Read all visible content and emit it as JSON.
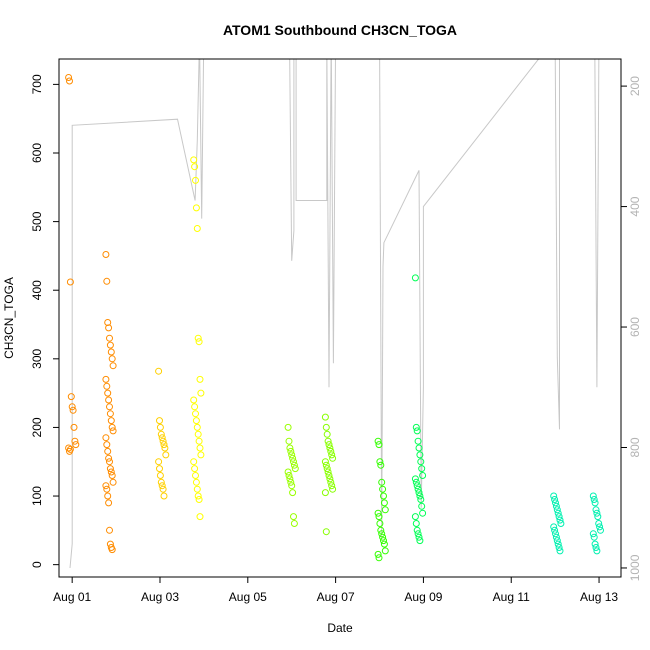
{
  "chart_data": {
    "type": "scatter",
    "title": "ATOM1 Southbound CH3CN_TOGA",
    "xlabel": "Date",
    "ylabel": "CH3CN_TOGA",
    "x_ticks": [
      "Aug 01",
      "Aug 03",
      "Aug 05",
      "Aug 07",
      "Aug 09",
      "Aug 11",
      "Aug 13"
    ],
    "x_tick_days": [
      1,
      3,
      5,
      7,
      9,
      11,
      13
    ],
    "xlim": [
      0.7,
      13.5
    ],
    "y_ticks": [
      0,
      100,
      200,
      300,
      400,
      500,
      600,
      700
    ],
    "ylim": [
      -18,
      737
    ],
    "right_axis": {
      "description": "pressure, reversed",
      "ticks": [
        200,
        400,
        600,
        800,
        1000
      ],
      "lim_top": 155,
      "lim_bottom": 1015,
      "color": "#bfbfbf"
    },
    "grid": false,
    "legend": "none",
    "scatter_groups": [
      {
        "day": 1.0,
        "color": "#ff8c00",
        "values": [
          710,
          705,
          412,
          245,
          230,
          225,
          200,
          180,
          175,
          170,
          165,
          168
        ]
      },
      {
        "day": 1.85,
        "color": "#ff8c00",
        "values": [
          452,
          413,
          353,
          345,
          330,
          320,
          310,
          300,
          290,
          270,
          260,
          250,
          240,
          230,
          220,
          210,
          200,
          195,
          185,
          175,
          165,
          155,
          150,
          140,
          135,
          130,
          120,
          115,
          110,
          100,
          90,
          50,
          30,
          25,
          22
        ]
      },
      {
        "day": 3.05,
        "color": "#ffd000",
        "values": [
          282,
          210,
          200,
          190,
          185,
          180,
          175,
          170,
          160,
          150,
          140,
          130,
          120,
          115,
          110,
          100
        ]
      },
      {
        "day": 3.85,
        "color": "#ffff00",
        "values": [
          590,
          580,
          560,
          520,
          490,
          330,
          325,
          270,
          250,
          240,
          230,
          220,
          210,
          200,
          190,
          180,
          170,
          160,
          150,
          140,
          130,
          120,
          110,
          100,
          95,
          70
        ]
      },
      {
        "day": 6.0,
        "color": "#99ff00",
        "values": [
          200,
          180,
          170,
          165,
          160,
          155,
          150,
          145,
          140,
          135,
          130,
          125,
          120,
          115,
          105,
          70,
          60
        ]
      },
      {
        "day": 6.85,
        "color": "#88ff00",
        "values": [
          215,
          200,
          190,
          180,
          175,
          170,
          165,
          160,
          155,
          150,
          145,
          140,
          135,
          130,
          125,
          120,
          115,
          110,
          105,
          48
        ]
      },
      {
        "day": 8.05,
        "color": "#33ff00",
        "values": [
          180,
          175,
          150,
          145,
          120,
          110,
          100,
          90,
          80,
          75,
          70,
          60,
          50,
          45,
          40,
          35,
          30,
          20,
          15,
          10
        ]
      },
      {
        "day": 8.9,
        "color": "#00ff55",
        "values": [
          418,
          200,
          195,
          180,
          170,
          160,
          150,
          140,
          130,
          125,
          120,
          115,
          110,
          105,
          100,
          95,
          85,
          75,
          70,
          60,
          50,
          45,
          40,
          35
        ]
      },
      {
        "day": 12.05,
        "color": "#00f0b0",
        "values": [
          100,
          95,
          90,
          85,
          80,
          75,
          70,
          65,
          60,
          55,
          50,
          45,
          40,
          35,
          30,
          25,
          20
        ]
      },
      {
        "day": 12.95,
        "color": "#00f0b0",
        "values": [
          100,
          95,
          90,
          80,
          75,
          70,
          60,
          55,
          50,
          45,
          40,
          30,
          25,
          20
        ]
      }
    ],
    "pressure_trace": [
      [
        0.95,
        1000
      ],
      [
        1.0,
        960
      ],
      [
        1.0,
        575
      ],
      [
        1.0,
        330
      ],
      [
        1.0,
        265
      ],
      [
        3.4,
        255
      ],
      [
        3.8,
        390
      ],
      [
        3.85,
        290
      ],
      [
        3.9,
        120
      ],
      [
        3.95,
        420
      ],
      [
        4.0,
        100
      ],
      [
        4.1,
        80
      ],
      [
        5.0,
        90
      ],
      [
        5.95,
        120
      ],
      [
        6.0,
        490
      ],
      [
        6.05,
        440
      ],
      [
        6.05,
        120
      ],
      [
        6.1,
        100
      ],
      [
        6.1,
        390
      ],
      [
        6.8,
        390
      ],
      [
        6.8,
        120
      ],
      [
        6.85,
        700
      ],
      [
        6.9,
        110
      ],
      [
        6.95,
        660
      ],
      [
        7.0,
        120
      ],
      [
        8.0,
        100
      ],
      [
        8.05,
        950
      ],
      [
        8.08,
        500
      ],
      [
        8.1,
        460
      ],
      [
        8.9,
        340
      ],
      [
        8.95,
        900
      ],
      [
        9.0,
        700
      ],
      [
        9.0,
        400
      ],
      [
        12.0,
        120
      ],
      [
        12.05,
        650
      ],
      [
        12.1,
        770
      ],
      [
        12.1,
        100
      ],
      [
        12.9,
        110
      ],
      [
        12.95,
        700
      ],
      [
        13.0,
        110
      ],
      [
        13.0,
        120
      ]
    ]
  }
}
